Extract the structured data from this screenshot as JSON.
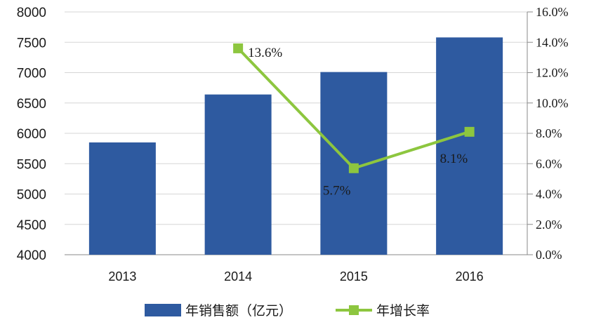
{
  "chart_data": {
    "type": "bar",
    "categories": [
      "2013",
      "2014",
      "2015",
      "2016"
    ],
    "series": [
      {
        "name": "年销售额（亿元）",
        "type": "bar",
        "axis": "left",
        "values": [
          5850,
          6640,
          7010,
          7580
        ],
        "color": "#2e5aa0"
      },
      {
        "name": "年增长率",
        "type": "line",
        "axis": "right",
        "values": [
          null,
          13.6,
          5.7,
          8.1
        ],
        "data_labels": [
          "",
          "13.6%",
          "5.7%",
          "8.1%"
        ],
        "color": "#8dc63f"
      }
    ],
    "y_left": {
      "ylim": [
        4000,
        8000
      ],
      "ticks": [
        "4000",
        "4500",
        "5000",
        "5500",
        "6000",
        "6500",
        "7000",
        "7500",
        "8000"
      ]
    },
    "y_right": {
      "ylim": [
        0,
        16
      ],
      "ticks": [
        "0.0%",
        "2.0%",
        "4.0%",
        "6.0%",
        "8.0%",
        "10.0%",
        "12.0%",
        "14.0%",
        "16.0%"
      ]
    },
    "grid": true,
    "legend": "bottom",
    "title": "",
    "xlabel": "",
    "ylabel": ""
  }
}
